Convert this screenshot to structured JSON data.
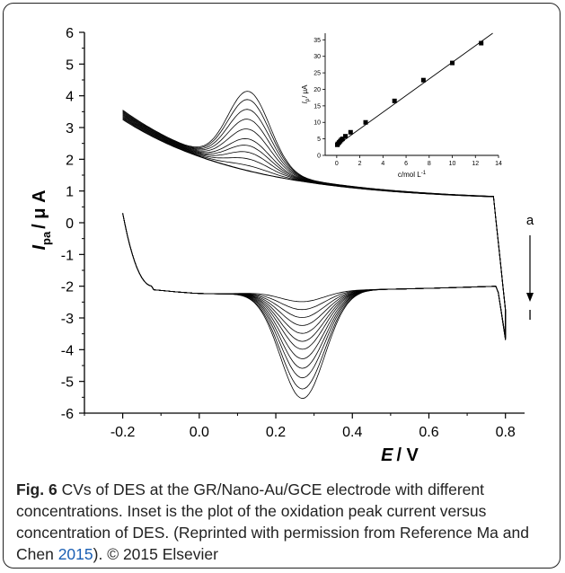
{
  "chart_data": [
    {
      "type": "line",
      "x_axis": {
        "label": "E / V",
        "label_italic": "E",
        "label_unit": "/ V",
        "range": [
          -0.3,
          0.85
        ],
        "ticks": [
          -0.2,
          0.0,
          0.2,
          0.4,
          0.6,
          0.8
        ],
        "tick_labels": [
          "-0.2",
          "0.0",
          "0.2",
          "0.4",
          "0.6",
          "0.8"
        ]
      },
      "y_axis": {
        "label": "I_pa / μ A",
        "label_main": "I",
        "label_sub": "pa",
        "label_unit": "/ μ A",
        "range": [
          -6,
          6
        ],
        "ticks": [
          6,
          5,
          4,
          3,
          2,
          1,
          0,
          -1,
          -2,
          -3,
          -4,
          -5,
          -6
        ],
        "tick_labels": [
          "6",
          "5",
          "4",
          "3",
          "2",
          "1",
          "0",
          "-1",
          "-2",
          "-3",
          "-4",
          "-5",
          "-6"
        ]
      },
      "annotations": {
        "top": "a",
        "bottom": "l"
      },
      "series_count": 12,
      "oxidation_peak": {
        "x": 0.13,
        "y_min": 2.1,
        "y_max": 4.75
      },
      "reduction_peak": {
        "x": 0.27,
        "y_min": -2.1,
        "y_max": -5.15
      },
      "series_peaks": [
        {
          "ox": 2.1,
          "red": -2.1
        },
        {
          "ox": 2.3,
          "red": -2.35
        },
        {
          "ox": 2.5,
          "red": -2.6
        },
        {
          "ox": 2.7,
          "red": -2.85
        },
        {
          "ox": 2.9,
          "red": -3.1
        },
        {
          "ox": 3.1,
          "red": -3.35
        },
        {
          "ox": 3.3,
          "red": -3.6
        },
        {
          "ox": 3.6,
          "red": -3.9
        },
        {
          "ox": 3.9,
          "red": -4.2
        },
        {
          "ox": 4.2,
          "red": -4.5
        },
        {
          "ox": 4.5,
          "red": -4.85
        },
        {
          "ox": 4.75,
          "red": -5.15
        }
      ]
    },
    {
      "type": "scatter",
      "x_axis": {
        "label": "c/mol L-1",
        "label_main": "c/mol L",
        "label_sup": "-1",
        "range": [
          -1,
          14
        ],
        "ticks": [
          0,
          2,
          4,
          6,
          8,
          10,
          12,
          14
        ],
        "tick_labels": [
          "0",
          "2",
          "4",
          "6",
          "8",
          "10",
          "12",
          "14"
        ]
      },
      "y_axis": {
        "label": "I_p / μA",
        "label_main": "I",
        "label_sub": "p",
        "label_unit": "/ μA",
        "range": [
          0,
          37
        ],
        "ticks": [
          0,
          5,
          10,
          15,
          20,
          25,
          30,
          35
        ],
        "tick_labels": [
          "0",
          "5",
          "10",
          "15",
          "20",
          "25",
          "30",
          "35"
        ]
      },
      "points": [
        {
          "x": 0.05,
          "y": 3.2
        },
        {
          "x": 0.1,
          "y": 3.5
        },
        {
          "x": 0.2,
          "y": 3.9
        },
        {
          "x": 0.3,
          "y": 4.3
        },
        {
          "x": 0.4,
          "y": 4.7
        },
        {
          "x": 0.5,
          "y": 5.0
        },
        {
          "x": 0.75,
          "y": 5.8
        },
        {
          "x": 1.2,
          "y": 7.0
        },
        {
          "x": 2.5,
          "y": 10.0
        },
        {
          "x": 5.0,
          "y": 16.5
        },
        {
          "x": 7.5,
          "y": 22.8
        },
        {
          "x": 10.0,
          "y": 28.0
        },
        {
          "x": 12.5,
          "y": 34.0
        }
      ],
      "fit_line": {
        "x": [
          0,
          13.5
        ],
        "y": [
          3.0,
          37.0
        ]
      }
    }
  ],
  "caption": {
    "label": "Fig. 6",
    "text_1": " CVs of DES at the GR/Nano-Au/GCE electrode with different concentrations. Inset is the plot of the oxidation peak current versus concentration of DES. (Reprinted with permission from Reference Ma and Chen ",
    "ref_year": "2015",
    "text_2": "). © 2015 Elsevier"
  }
}
